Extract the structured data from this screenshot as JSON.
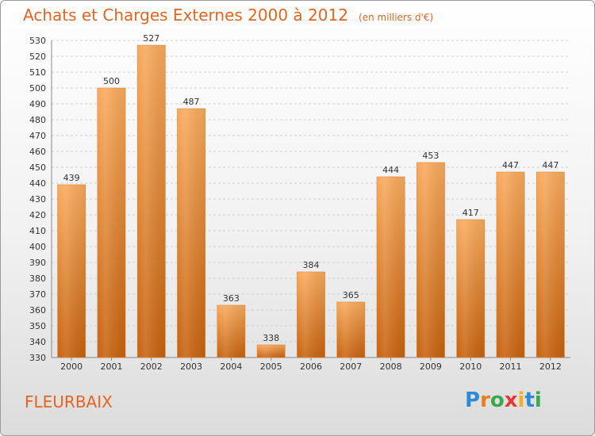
{
  "title": "Achats et Charges Externes 2000 à 2012",
  "subtitle": "(en milliers d'€)",
  "footer_label": "FLEURBAIX",
  "brand": {
    "letters": [
      "P",
      "r",
      "o",
      "x",
      "i",
      "t",
      "i"
    ],
    "colors": [
      "#2e8ad6",
      "#e67e22",
      "#3aa84c",
      "#e53935",
      "#f2b01e",
      "#2e8ad6",
      "#3aa84c"
    ]
  },
  "colors": {
    "accent": "#e8641e",
    "bar_light": "#f8a85a",
    "bar_dark": "#c7620e"
  },
  "chart_data": {
    "type": "bar",
    "title": "Achats et Charges Externes 2000 à 2012",
    "subtitle": "(en milliers d'€)",
    "categories": [
      "2000",
      "2001",
      "2002",
      "2003",
      "2004",
      "2005",
      "2006",
      "2007",
      "2008",
      "2009",
      "2010",
      "2011",
      "2012"
    ],
    "values": [
      439,
      500,
      527,
      487,
      363,
      338,
      384,
      365,
      444,
      453,
      417,
      447,
      447
    ],
    "ylim": [
      330,
      530
    ],
    "yticks": [
      330,
      340,
      350,
      360,
      370,
      380,
      390,
      400,
      410,
      420,
      430,
      440,
      450,
      460,
      470,
      480,
      490,
      500,
      510,
      520,
      530
    ],
    "grid": true,
    "legend": "none"
  }
}
